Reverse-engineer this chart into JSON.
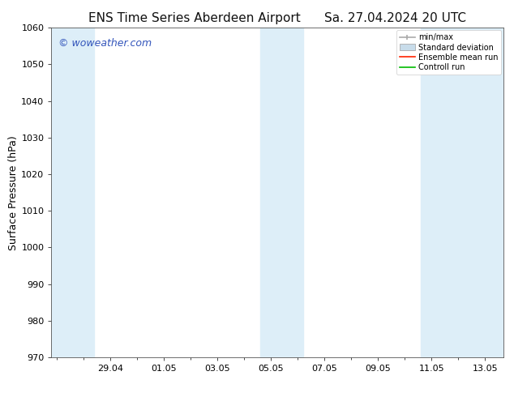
{
  "title_left": "ENS Time Series Aberdeen Airport",
  "title_right": "Sa. 27.04.2024 20 UTC",
  "ylabel": "Surface Pressure (hPa)",
  "ylim": [
    970,
    1060
  ],
  "yticks": [
    970,
    980,
    990,
    1000,
    1010,
    1020,
    1030,
    1040,
    1050,
    1060
  ],
  "background_color": "#ffffff",
  "plot_bg_color": "#ffffff",
  "watermark": "© woweather.com",
  "watermark_color": "#3355bb",
  "legend_entries": [
    "min/max",
    "Standard deviation",
    "Ensemble mean run",
    "Controll run"
  ],
  "legend_colors_line": [
    "#aaaaaa",
    "#c8dcea",
    "#ff0000",
    "#00bb00"
  ],
  "shaded_color": "#ddeef8",
  "x_tick_dates": [
    "29.04",
    "01.05",
    "03.05",
    "05.05",
    "07.05",
    "09.05",
    "11.05",
    "13.05"
  ],
  "x_tick_positions": [
    2,
    4,
    6,
    8,
    10,
    12,
    14,
    16
  ],
  "xlim": [
    -0.2,
    16.7
  ],
  "shaded_regions": [
    {
      "x_start": -0.2,
      "x_end": 1.4
    },
    {
      "x_start": 7.6,
      "x_end": 9.2
    },
    {
      "x_start": 13.6,
      "x_end": 16.7
    }
  ],
  "title_fontsize": 11,
  "tick_fontsize": 8,
  "ylabel_fontsize": 9,
  "watermark_fontsize": 9,
  "legend_fontsize": 7
}
